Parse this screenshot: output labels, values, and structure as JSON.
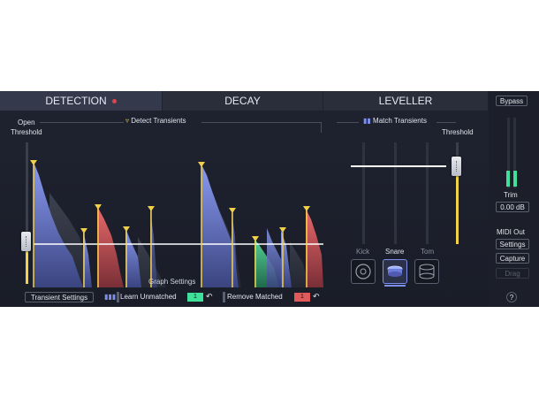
{
  "tabs": {
    "detection": "DETECTION",
    "decay": "DECAY",
    "leveller": "LEVELLER"
  },
  "detection": {
    "open_threshold_label": "Open\nThreshold",
    "detect_transients_label": "Detect Transients",
    "graph_settings_label": "Graph Settings",
    "transient_settings_button": "Transient Settings",
    "learn_unmatched_button": "Learn Unmatched",
    "learn_unmatched_count": "1",
    "remove_matched_button": "Remove Matched",
    "remove_matched_count": "1"
  },
  "leveller": {
    "match_transients_label": "Match Transients",
    "threshold_label": "Threshold",
    "drums": [
      {
        "label": "Kick",
        "selected": false
      },
      {
        "label": "Snare",
        "selected": true
      },
      {
        "label": "Tom",
        "selected": false
      }
    ]
  },
  "side": {
    "bypass_label": "Bypass",
    "trim_label": "Trim",
    "trim_value": "0.00 dB",
    "midi_out_label": "MIDI Out",
    "settings_button": "Settings",
    "capture_button": "Capture",
    "drag_button": "Drag",
    "help_button": "?"
  },
  "colors": {
    "blue": "#7d8ee8",
    "red": "#e05a5a",
    "green": "#4fc58a",
    "yellow": "#f2d14a",
    "bypass_green": "#3fe09a"
  }
}
